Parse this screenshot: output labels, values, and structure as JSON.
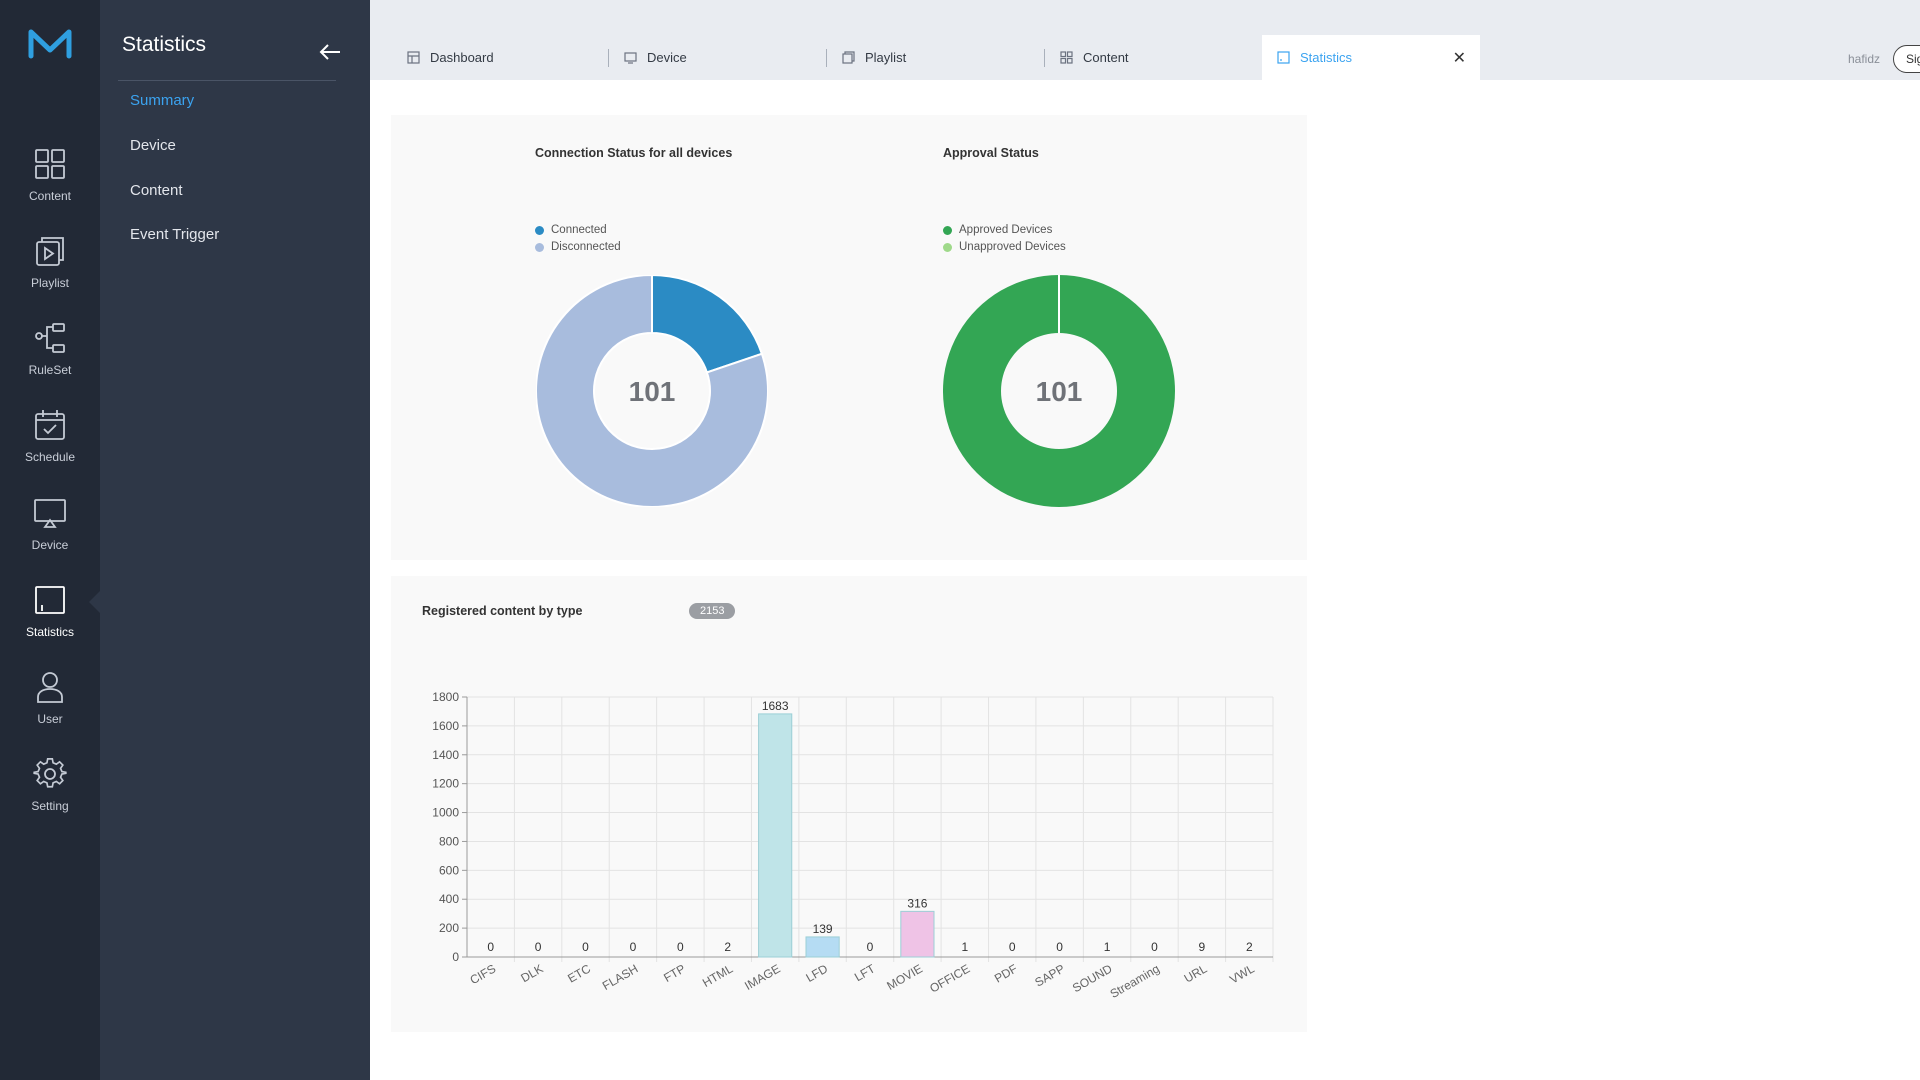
{
  "rail": {
    "items": [
      {
        "label": "Content",
        "icon": "content-grid-icon"
      },
      {
        "label": "Playlist",
        "icon": "playlist-icon"
      },
      {
        "label": "RuleSet",
        "icon": "ruleset-icon"
      },
      {
        "label": "Schedule",
        "icon": "schedule-icon"
      },
      {
        "label": "Device",
        "icon": "device-monitor-icon"
      },
      {
        "label": "Statistics",
        "icon": "statistics-icon"
      },
      {
        "label": "User",
        "icon": "user-icon"
      },
      {
        "label": "Setting",
        "icon": "gear-icon"
      }
    ]
  },
  "sidebar": {
    "title": "Statistics",
    "links": [
      "Summary",
      "Device",
      "Content",
      "Event Trigger"
    ],
    "active": "Summary"
  },
  "tabs": [
    {
      "label": "Dashboard",
      "icon": "dashboard-icon"
    },
    {
      "label": "Device",
      "icon": "device-icon"
    },
    {
      "label": "Playlist",
      "icon": "playlist-icon"
    },
    {
      "label": "Content",
      "icon": "content-icon"
    },
    {
      "label": "Statistics",
      "icon": "statistics-icon",
      "active": true
    }
  ],
  "header": {
    "user": "hafidz",
    "signout_label": "Sig"
  },
  "connection_card": {
    "title": "Connection Status for all devices",
    "legend": [
      "Connected",
      "Disconnected"
    ],
    "center": "101"
  },
  "approval_card": {
    "title": "Approval Status",
    "legend": [
      "Approved Devices",
      "Unapproved Devices"
    ],
    "center": "101"
  },
  "content_card": {
    "title": "Registered content by type",
    "total": "2153"
  },
  "colors": {
    "accent": "#3ba3f0",
    "connected": "#2b8bc4",
    "disconnected": "#a8bcdd",
    "approved": "#33a654",
    "unapproved": "#9fd98a"
  },
  "chart_data": [
    {
      "type": "pie",
      "title": "Connection Status for all devices",
      "labels": [
        "Connected",
        "Disconnected"
      ],
      "values": [
        20,
        81
      ],
      "total": 101
    },
    {
      "type": "pie",
      "title": "Approval Status",
      "labels": [
        "Approved Devices",
        "Unapproved Devices"
      ],
      "values": [
        101,
        0
      ],
      "total": 101
    },
    {
      "type": "bar",
      "title": "Registered content by type",
      "categories": [
        "CIFS",
        "DLK",
        "ETC",
        "FLASH",
        "FTP",
        "HTML",
        "IMAGE",
        "LFD",
        "LFT",
        "MOVIE",
        "OFFICE",
        "PDF",
        "SAPP",
        "SOUND",
        "Streaming",
        "URL",
        "VWL"
      ],
      "values": [
        0,
        0,
        0,
        0,
        0,
        2,
        1683,
        139,
        0,
        316,
        1,
        0,
        0,
        1,
        0,
        9,
        2
      ],
      "ylim": [
        0,
        1800
      ],
      "yticks": [
        0,
        200,
        400,
        600,
        800,
        1000,
        1200,
        1400,
        1600,
        1800
      ],
      "grid": true,
      "bar_colors": {
        "IMAGE": "#bfe4e8",
        "LFD": "#b5dcf3",
        "MOVIE": "#efc3e6"
      }
    }
  ]
}
